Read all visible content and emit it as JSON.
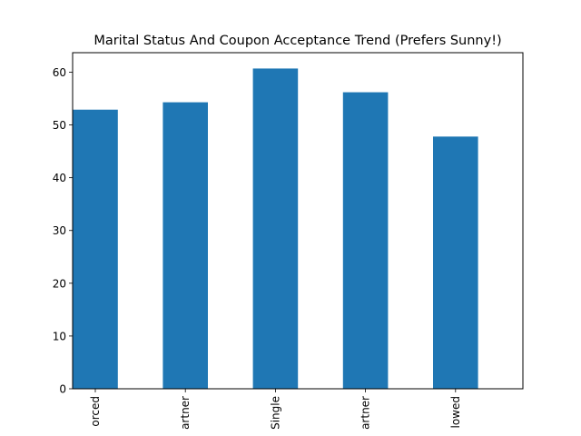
{
  "chart_data": {
    "type": "bar",
    "title": "Marital Status And Coupon Acceptance Trend (Prefers Sunny!)",
    "xlabel": "",
    "ylabel": "",
    "categories": [
      "orced",
      "artner",
      "Single",
      "artner",
      "lowed"
    ],
    "values": [
      52.9,
      54.3,
      60.7,
      56.2,
      47.8
    ],
    "ylim": [
      0,
      63.7
    ],
    "yticks": [
      0,
      10,
      20,
      30,
      40,
      50,
      60
    ],
    "ytick_labels": [
      "0",
      "10",
      "20",
      "30",
      "40",
      "50",
      "60"
    ],
    "bar_color": "#1f77b4",
    "grid": false,
    "legend": "none"
  }
}
